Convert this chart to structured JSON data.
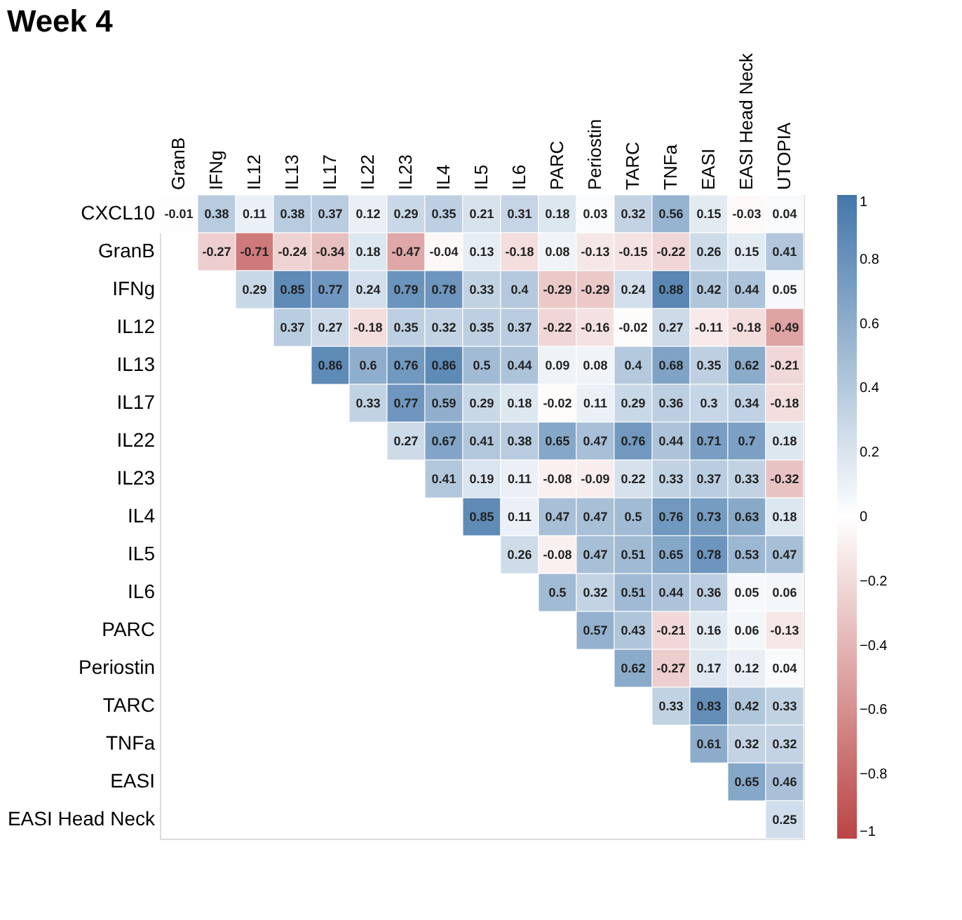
{
  "chart_data": {
    "type": "heatmap",
    "title": "Week 4",
    "categories": [
      "GranB",
      "IFNg",
      "IL12",
      "IL13",
      "IL17",
      "IL22",
      "IL23",
      "IL4",
      "IL5",
      "IL6",
      "PARC",
      "Periostin",
      "TARC",
      "TNFa",
      "EASI",
      "EASI Head Neck",
      "UTOPIA"
    ],
    "y_categories": [
      "CXCL10",
      "GranB",
      "IFNg",
      "IL12",
      "IL13",
      "IL17",
      "IL22",
      "IL23",
      "IL4",
      "IL5",
      "IL6",
      "PARC",
      "Periostin",
      "TARC",
      "TNFa",
      "EASI",
      "EASI Head Neck"
    ],
    "cells": [
      [
        -0.01,
        0.38,
        0.11,
        0.38,
        0.37,
        0.12,
        0.29,
        0.35,
        0.21,
        0.31,
        0.18,
        0.03,
        0.32,
        0.56,
        0.15,
        -0.03,
        0.04
      ],
      [
        null,
        -0.27,
        -0.71,
        -0.24,
        -0.34,
        0.18,
        -0.47,
        -0.04,
        0.13,
        -0.18,
        0.08,
        -0.13,
        -0.15,
        -0.22,
        0.26,
        0.15,
        0.41
      ],
      [
        null,
        null,
        0.29,
        0.85,
        0.77,
        0.24,
        0.79,
        0.78,
        0.33,
        0.4,
        -0.29,
        -0.29,
        0.24,
        0.88,
        0.42,
        0.44,
        0.05
      ],
      [
        null,
        null,
        null,
        0.37,
        0.27,
        -0.18,
        0.35,
        0.32,
        0.35,
        0.37,
        -0.22,
        -0.16,
        -0.02,
        0.27,
        -0.11,
        -0.18,
        -0.49
      ],
      [
        null,
        null,
        null,
        null,
        0.86,
        0.6,
        0.76,
        0.86,
        0.5,
        0.44,
        0.09,
        0.08,
        0.4,
        0.68,
        0.35,
        0.62,
        -0.21
      ],
      [
        null,
        null,
        null,
        null,
        null,
        0.33,
        0.77,
        0.59,
        0.29,
        0.18,
        -0.02,
        0.11,
        0.29,
        0.36,
        0.3,
        0.34,
        -0.18
      ],
      [
        null,
        null,
        null,
        null,
        null,
        null,
        0.27,
        0.67,
        0.41,
        0.38,
        0.65,
        0.47,
        0.76,
        0.44,
        0.71,
        0.7,
        0.18
      ],
      [
        null,
        null,
        null,
        null,
        null,
        null,
        null,
        0.41,
        0.19,
        0.11,
        -0.08,
        -0.09,
        0.22,
        0.33,
        0.37,
        0.33,
        -0.32
      ],
      [
        null,
        null,
        null,
        null,
        null,
        null,
        null,
        null,
        0.85,
        0.11,
        0.47,
        0.47,
        0.5,
        0.76,
        0.73,
        0.63,
        0.18
      ],
      [
        null,
        null,
        null,
        null,
        null,
        null,
        null,
        null,
        null,
        0.26,
        -0.08,
        0.47,
        0.51,
        0.65,
        0.78,
        0.53,
        0.47
      ],
      [
        null,
        null,
        null,
        null,
        null,
        null,
        null,
        null,
        null,
        null,
        0.5,
        0.32,
        0.51,
        0.44,
        0.36,
        0.05,
        0.06
      ],
      [
        null,
        null,
        null,
        null,
        null,
        null,
        null,
        null,
        null,
        null,
        null,
        0.57,
        0.43,
        -0.21,
        0.16,
        0.06,
        -0.13
      ],
      [
        null,
        null,
        null,
        null,
        null,
        null,
        null,
        null,
        null,
        null,
        null,
        null,
        0.62,
        -0.27,
        0.17,
        0.12,
        0.04
      ],
      [
        null,
        null,
        null,
        null,
        null,
        null,
        null,
        null,
        null,
        null,
        null,
        null,
        null,
        0.33,
        0.83,
        0.42,
        0.33
      ],
      [
        null,
        null,
        null,
        null,
        null,
        null,
        null,
        null,
        null,
        null,
        null,
        null,
        null,
        null,
        0.61,
        0.32,
        0.32
      ],
      [
        null,
        null,
        null,
        null,
        null,
        null,
        null,
        null,
        null,
        null,
        null,
        null,
        null,
        null,
        null,
        0.65,
        0.46
      ],
      [
        null,
        null,
        null,
        null,
        null,
        null,
        null,
        null,
        null,
        null,
        null,
        null,
        null,
        null,
        null,
        null,
        0.25
      ]
    ],
    "data_labels": true,
    "clim": [
      -1,
      1
    ],
    "cticks": [
      -1,
      -0.8,
      -0.6,
      -0.4,
      -0.2,
      0,
      0.2,
      0.4,
      0.6,
      0.8,
      1
    ]
  }
}
